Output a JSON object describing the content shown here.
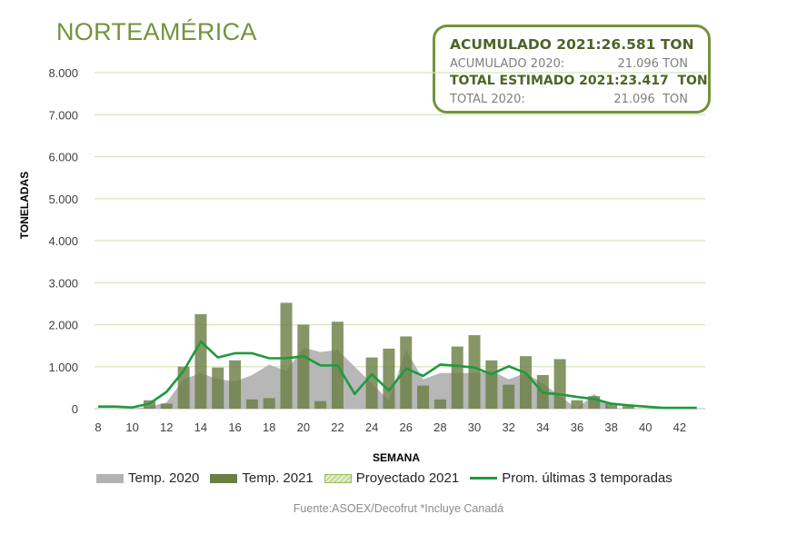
{
  "title": "NORTEAMÉRICA",
  "summary": {
    "rows": [
      {
        "label": "ACUMULADO 2021:",
        "value": "26.581 TON"
      },
      {
        "label": "ACUMULADO 2020:",
        "value": "21.096 TON"
      },
      {
        "label": "TOTAL ESTIMADO 2021:",
        "value": "23.417  TON"
      },
      {
        "label": "TOTAL 2020:",
        "value": "21.096  TON"
      }
    ]
  },
  "source": "Fuente:ASOEX/Decofrut *Incluye Canadá",
  "colors": {
    "title": "#76923c",
    "temp2020": "#b3b3b3",
    "temp2021": "#6b7f45",
    "projected": "#d7e4bd",
    "average": "#1e9a3e",
    "grid": "#d7e4bd"
  },
  "chart_data": {
    "type": "bar",
    "title": "NORTEAMÉRICA",
    "xlabel": "SEMANA",
    "ylabel": "TONELADAS",
    "ylim": [
      0,
      8000
    ],
    "xlim": [
      8,
      43
    ],
    "yticks": [
      0,
      1000,
      2000,
      3000,
      4000,
      5000,
      6000,
      7000,
      8000
    ],
    "ytick_labels": [
      "0",
      "1.000",
      "2.000",
      "3.000",
      "4.000",
      "5.000",
      "6.000",
      "7.000",
      "8.000"
    ],
    "xticks": [
      8,
      10,
      12,
      14,
      16,
      18,
      20,
      22,
      24,
      26,
      28,
      30,
      32,
      34,
      36,
      38,
      40,
      42
    ],
    "xtick_labels": [
      "8",
      "10",
      "12",
      "14",
      "16",
      "18",
      "20",
      "22",
      "24",
      "26",
      "28",
      "30",
      "32",
      "34",
      "36",
      "38",
      "40",
      "42"
    ],
    "grid": true,
    "legend_position": "bottom",
    "legend": [
      "Temp. 2020",
      "Temp. 2021",
      "Proyectado 2021",
      "Prom. últimas 3 temporadas"
    ],
    "series": [
      {
        "name": "Temp. 2020",
        "type": "area",
        "x": [
          8,
          9,
          10,
          11,
          12,
          13,
          14,
          15,
          16,
          17,
          18,
          19,
          20,
          21,
          22,
          23,
          24,
          25,
          26,
          27,
          28,
          29,
          30,
          31,
          32,
          33,
          34,
          35,
          36,
          37,
          38,
          39,
          40,
          41,
          42,
          43
        ],
        "values": [
          0,
          0,
          0,
          50,
          150,
          700,
          850,
          700,
          650,
          800,
          1050,
          900,
          1450,
          1350,
          1400,
          1000,
          600,
          200,
          1400,
          700,
          850,
          850,
          850,
          900,
          700,
          850,
          600,
          300,
          0,
          350,
          0,
          0,
          0,
          0,
          0,
          0
        ]
      },
      {
        "name": "Temp. 2021",
        "type": "bar",
        "x": [
          11,
          12,
          13,
          14,
          15,
          16,
          17,
          18,
          19,
          20,
          21,
          22,
          23,
          24,
          25,
          26,
          27,
          28,
          29,
          30,
          31,
          32,
          33,
          34,
          35,
          36,
          37,
          38,
          39
        ],
        "values": [
          200,
          120,
          1000,
          2250,
          980,
          1150,
          220,
          250,
          2520,
          2000,
          180,
          2070,
          0,
          1220,
          1430,
          1720,
          550,
          220,
          1480,
          1750,
          1150,
          570,
          1250,
          800,
          1180,
          200,
          300,
          120,
          60
        ]
      },
      {
        "name": "Proyectado 2021",
        "type": "bar",
        "x": [],
        "values": []
      },
      {
        "name": "Prom. últimas 3 temporadas",
        "type": "line",
        "x": [
          8,
          9,
          10,
          11,
          12,
          13,
          14,
          15,
          16,
          17,
          18,
          19,
          20,
          21,
          22,
          23,
          24,
          25,
          26,
          27,
          28,
          29,
          30,
          31,
          32,
          33,
          34,
          35,
          36,
          37,
          38,
          39,
          40,
          41,
          42,
          43
        ],
        "values": [
          50,
          50,
          30,
          120,
          400,
          900,
          1600,
          1220,
          1320,
          1320,
          1200,
          1200,
          1250,
          1030,
          1030,
          350,
          820,
          430,
          960,
          780,
          1050,
          1020,
          980,
          820,
          1010,
          850,
          380,
          340,
          280,
          230,
          120,
          80,
          50,
          20,
          20,
          20
        ]
      }
    ]
  }
}
